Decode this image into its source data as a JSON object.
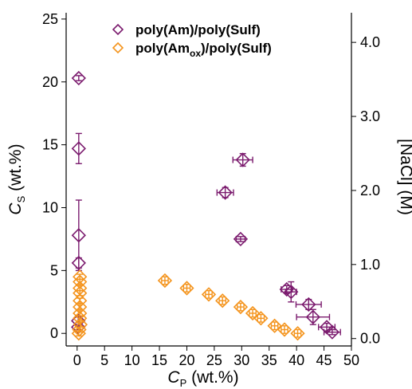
{
  "chart_data": {
    "type": "scatter",
    "title": "",
    "x_axis": {
      "label_main": "C",
      "label_sub": "P",
      "label_unit": " (wt.%)",
      "range": [
        -2,
        50
      ],
      "ticks": [
        0,
        5,
        10,
        15,
        20,
        25,
        30,
        35,
        40,
        45,
        50
      ]
    },
    "y_axis_left": {
      "label_main": "C",
      "label_sub": "S",
      "label_unit": " (wt.%)",
      "range": [
        -1,
        25.5
      ],
      "ticks": [
        0,
        5,
        10,
        15,
        20,
        25
      ]
    },
    "y_axis_right": {
      "label": "[NaCl] (M)",
      "range": [
        -0.1,
        4.4
      ],
      "ticks": [
        0.0,
        1.0,
        2.0,
        3.0,
        4.0
      ],
      "tick_labels": [
        "0.0",
        "1.0",
        "2.0",
        "3.0",
        "4.0"
      ]
    },
    "legend_position": "top-center",
    "series": [
      {
        "name": "poly(Am)/poly(Sulf)",
        "legend_parts": [
          {
            "text": "poly(Am)/poly(Sulf)",
            "sub": false
          }
        ],
        "color": "#7b1b6e",
        "points": [
          {
            "x": 0.3,
            "y": 20.3,
            "xerr": 0,
            "yerr": 0.2
          },
          {
            "x": 0.3,
            "y": 14.7,
            "xerr": 0,
            "yerr": 1.2
          },
          {
            "x": 0.3,
            "y": 7.8,
            "xerr": 0,
            "yerr": 2.8
          },
          {
            "x": 0.3,
            "y": 5.6,
            "xerr": 0,
            "yerr": 0.4
          },
          {
            "x": 0.2,
            "y": 1.0,
            "xerr": 0,
            "yerr": 0.3
          },
          {
            "x": 0.2,
            "y": 0.5,
            "xerr": 0,
            "yerr": 0.2
          },
          {
            "x": 27.0,
            "y": 11.2,
            "xerr": 1.5,
            "yerr": 0.4
          },
          {
            "x": 30.2,
            "y": 13.8,
            "xerr": 1.8,
            "yerr": 0.5
          },
          {
            "x": 29.8,
            "y": 7.5,
            "xerr": 0.8,
            "yerr": 0.2
          },
          {
            "x": 38.2,
            "y": 3.5,
            "xerr": 1.0,
            "yerr": 0.3
          },
          {
            "x": 39.0,
            "y": 3.3,
            "xerr": 1.0,
            "yerr": 0.8
          },
          {
            "x": 42.2,
            "y": 2.3,
            "xerr": 2.3,
            "yerr": 0.4
          },
          {
            "x": 43.0,
            "y": 1.3,
            "xerr": 3.0,
            "yerr": 0.6
          },
          {
            "x": 45.5,
            "y": 0.5,
            "xerr": 1.5,
            "yerr": 0.3
          },
          {
            "x": 46.5,
            "y": 0.1,
            "xerr": 1.5,
            "yerr": 0.2
          }
        ]
      },
      {
        "name": "poly(Amox)/poly(Sulf)",
        "legend_parts": [
          {
            "text": "poly(Am",
            "sub": false
          },
          {
            "text": "ox",
            "sub": true
          },
          {
            "text": ")/poly(Sulf)",
            "sub": false
          }
        ],
        "color": "#f4941d",
        "points": [
          {
            "x": 0.5,
            "y": 4.5,
            "xerr": 0,
            "yerr": 0.2
          },
          {
            "x": 0.5,
            "y": 4.1,
            "xerr": 0,
            "yerr": 0.2
          },
          {
            "x": 0.5,
            "y": 3.6,
            "xerr": 0,
            "yerr": 0.2
          },
          {
            "x": 0.5,
            "y": 3.2,
            "xerr": 0,
            "yerr": 0.2
          },
          {
            "x": 0.5,
            "y": 2.6,
            "xerr": 0,
            "yerr": 0.2
          },
          {
            "x": 0.5,
            "y": 2.1,
            "xerr": 0,
            "yerr": 0.2
          },
          {
            "x": 0.5,
            "y": 1.6,
            "xerr": 0,
            "yerr": 0.2
          },
          {
            "x": 0.5,
            "y": 1.2,
            "xerr": 0,
            "yerr": 0.2
          },
          {
            "x": 0.6,
            "y": 0.7,
            "xerr": 0,
            "yerr": 0.2
          },
          {
            "x": 0.4,
            "y": 0.3,
            "xerr": 0,
            "yerr": 0.2
          },
          {
            "x": 0.3,
            "y": 0.0,
            "xerr": 0,
            "yerr": 0.2
          },
          {
            "x": 16.0,
            "y": 4.2,
            "xerr": 0.6,
            "yerr": 0.3
          },
          {
            "x": 20.0,
            "y": 3.6,
            "xerr": 0.6,
            "yerr": 0.3
          },
          {
            "x": 24.0,
            "y": 3.1,
            "xerr": 0.6,
            "yerr": 0.3
          },
          {
            "x": 26.5,
            "y": 2.6,
            "xerr": 0.6,
            "yerr": 0.3
          },
          {
            "x": 29.8,
            "y": 2.1,
            "xerr": 0.6,
            "yerr": 0.3
          },
          {
            "x": 32.0,
            "y": 1.6,
            "xerr": 0.6,
            "yerr": 0.3
          },
          {
            "x": 33.5,
            "y": 1.2,
            "xerr": 0.6,
            "yerr": 0.3
          },
          {
            "x": 36.0,
            "y": 0.6,
            "xerr": 0.6,
            "yerr": 0.3
          },
          {
            "x": 37.8,
            "y": 0.3,
            "xerr": 0.6,
            "yerr": 0.3
          },
          {
            "x": 40.2,
            "y": 0.0,
            "xerr": 0.6,
            "yerr": 0.3
          }
        ]
      }
    ]
  }
}
